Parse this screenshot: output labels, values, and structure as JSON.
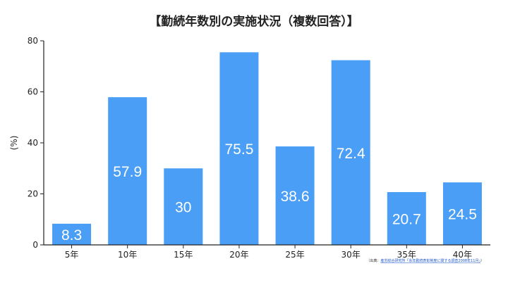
{
  "chart_data": {
    "type": "bar",
    "title": "【勤続年数別の実施状況（複数回答）】",
    "ylabel": "(%)",
    "xlabel": "",
    "categories": [
      "5年",
      "10年",
      "15年",
      "20年",
      "25年",
      "30年",
      "35年",
      "40年"
    ],
    "values": [
      8.3,
      57.9,
      30,
      75.5,
      38.6,
      72.4,
      20.7,
      24.5
    ],
    "value_labels": [
      "8.3",
      "57.9",
      "30",
      "75.5",
      "38.6",
      "72.4",
      "20.7",
      "24.5"
    ],
    "ylim": [
      0,
      80
    ],
    "yticks": [
      0,
      20,
      40,
      60,
      80
    ],
    "ytick_labels": [
      "0",
      "20",
      "40",
      "60",
      "80"
    ],
    "grid": false,
    "legend": "none",
    "bar_color": "#4a9ef5",
    "axis_color": "#222222"
  },
  "source": {
    "prefix": "（出典：",
    "link_text": "産労総合研究所「永年勤続表彰制度に関する調査2008年11月」",
    "suffix": "）"
  }
}
